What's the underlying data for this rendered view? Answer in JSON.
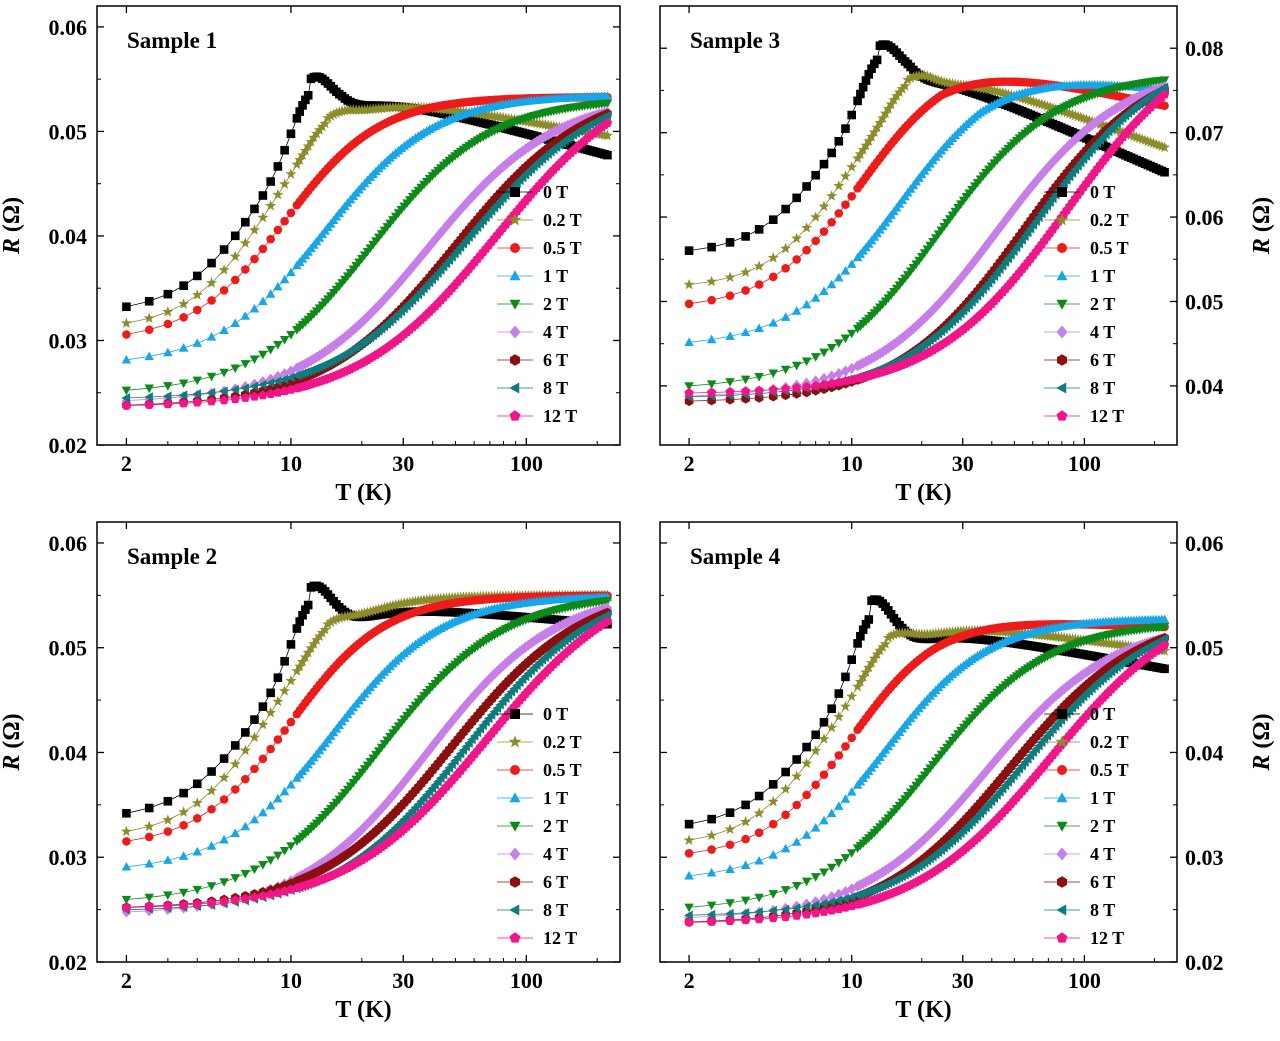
{
  "figure": {
    "x_unit_label": "T (K)",
    "y_unit_label_italic": "R",
    "y_unit_label_rest": " (Ω)",
    "legend": [
      {
        "label": "0 T",
        "color": "#000000",
        "marker": "square"
      },
      {
        "label": "0.2 T",
        "color": "#8c8c2a",
        "marker": "star"
      },
      {
        "label": "0.5 T",
        "color": "#ee1b1b",
        "marker": "circle"
      },
      {
        "label": "1 T",
        "color": "#18a6e6",
        "marker": "triangle-up"
      },
      {
        "label": "2 T",
        "color": "#0e8a1a",
        "marker": "triangle-down"
      },
      {
        "label": "4 T",
        "color": "#c77ee8",
        "marker": "diamond"
      },
      {
        "label": "6 T",
        "color": "#8b0f0f",
        "marker": "hexagon"
      },
      {
        "label": "8 T",
        "color": "#0c7c7c",
        "marker": "triangle-left"
      },
      {
        "label": "12 T",
        "color": "#f0168a",
        "marker": "pentagon"
      }
    ]
  },
  "chart_data": [
    {
      "type": "scatter",
      "title": "Sample 1",
      "xlabel": "T (K)",
      "ylabel": "R (Ω)",
      "x_scale": "log",
      "xlim": [
        1.5,
        250
      ],
      "ylim": [
        0.02,
        0.062
      ],
      "x_ticks": [
        2,
        10,
        30,
        100
      ],
      "y_ticks": [
        0.02,
        0.03,
        0.04,
        0.05,
        0.06
      ],
      "y_axis_side": "left",
      "legend_position": "right-middle",
      "series": [
        {
          "name": "0 T",
          "r_low": 0.0325,
          "r_high": 0.0545,
          "onset_T": 7.5,
          "width": 0.17,
          "peak": 0.0055,
          "peak_T": 12,
          "high_slope": -0.006
        },
        {
          "name": "0.2 T",
          "r_low": 0.031,
          "r_high": 0.054,
          "onset_T": 8.0,
          "width": 0.17,
          "peak": 0.0015,
          "peak_T": 14,
          "high_slope": -0.004
        },
        {
          "name": "0.5 T",
          "r_low": 0.0298,
          "r_high": 0.0533,
          "onset_T": 9.5,
          "width": 0.2,
          "peak": 0.0,
          "peak_T": 20,
          "high_slope": 0.0
        },
        {
          "name": "1 T",
          "r_low": 0.0275,
          "r_high": 0.0535,
          "onset_T": 14.0,
          "width": 0.23,
          "peak": 0.0,
          "peak_T": 20,
          "high_slope": 0.0
        },
        {
          "name": "2 T",
          "r_low": 0.0248,
          "r_high": 0.0532,
          "onset_T": 22.0,
          "width": 0.25,
          "peak": 0.0,
          "peak_T": 20,
          "high_slope": 0.0
        },
        {
          "name": "4 T",
          "r_low": 0.024,
          "r_high": 0.0535,
          "onset_T": 38.0,
          "width": 0.27,
          "peak": 0.0,
          "peak_T": 20,
          "high_slope": 0.0
        },
        {
          "name": "6 T",
          "r_low": 0.0236,
          "r_high": 0.0545,
          "onset_T": 50.0,
          "width": 0.28,
          "peak": 0.0,
          "peak_T": 20,
          "high_slope": 0.0
        },
        {
          "name": "8 T",
          "r_low": 0.0243,
          "r_high": 0.055,
          "onset_T": 56.0,
          "width": 0.29,
          "peak": 0.0,
          "peak_T": 20,
          "high_slope": 0.0
        },
        {
          "name": "12 T",
          "r_low": 0.0236,
          "r_high": 0.0565,
          "onset_T": 75.0,
          "width": 0.3,
          "peak": 0.0,
          "peak_T": 20,
          "high_slope": 0.0
        }
      ]
    },
    {
      "type": "scatter",
      "title": "Sample 3",
      "xlabel": "T (K)",
      "ylabel": "R (Ω)",
      "x_scale": "log",
      "xlim": [
        1.5,
        250
      ],
      "ylim": [
        0.033,
        0.085
      ],
      "x_ticks": [
        2,
        10,
        30,
        100
      ],
      "y_ticks": [
        0.04,
        0.05,
        0.06,
        0.07,
        0.08
      ],
      "y_axis_side": "right",
      "legend_position": "right-middle",
      "series": [
        {
          "name": "0 T",
          "r_low": 0.0555,
          "r_high": 0.0785,
          "onset_T": 8.0,
          "width": 0.16,
          "peak": 0.0065,
          "peak_T": 13,
          "high_slope": -0.012
        },
        {
          "name": "0.2 T",
          "r_low": 0.0515,
          "r_high": 0.0785,
          "onset_T": 9.5,
          "width": 0.17,
          "peak": 0.0025,
          "peak_T": 17,
          "high_slope": -0.01
        },
        {
          "name": "0.5 T",
          "r_low": 0.049,
          "r_high": 0.079,
          "onset_T": 11.0,
          "width": 0.2,
          "peak": 0.0,
          "peak_T": 20,
          "high_slope": -0.006
        },
        {
          "name": "1 T",
          "r_low": 0.0445,
          "r_high": 0.0785,
          "onset_T": 16.0,
          "width": 0.23,
          "peak": 0.0,
          "peak_T": 20,
          "high_slope": -0.004
        },
        {
          "name": "2 T",
          "r_low": 0.0395,
          "r_high": 0.077,
          "onset_T": 24.0,
          "width": 0.25,
          "peak": 0.0,
          "peak_T": 20,
          "high_slope": 0.0
        },
        {
          "name": "4 T",
          "r_low": 0.0385,
          "r_high": 0.078,
          "onset_T": 42.0,
          "width": 0.27,
          "peak": 0.0,
          "peak_T": 20,
          "high_slope": 0.0
        },
        {
          "name": "6 T",
          "r_low": 0.038,
          "r_high": 0.079,
          "onset_T": 55.0,
          "width": 0.27,
          "peak": 0.0,
          "peak_T": 20,
          "high_slope": 0.0
        },
        {
          "name": "8 T",
          "r_low": 0.0385,
          "r_high": 0.0805,
          "onset_T": 62.0,
          "width": 0.28,
          "peak": 0.0,
          "peak_T": 20,
          "high_slope": 0.0
        },
        {
          "name": "12 T",
          "r_low": 0.039,
          "r_high": 0.083,
          "onset_T": 85.0,
          "width": 0.29,
          "peak": 0.0,
          "peak_T": 20,
          "high_slope": 0.0
        }
      ]
    },
    {
      "type": "scatter",
      "title": "Sample 2",
      "xlabel": "T (K)",
      "ylabel": "R (Ω)",
      "x_scale": "log",
      "xlim": [
        1.5,
        250
      ],
      "ylim": [
        0.02,
        0.062
      ],
      "x_ticks": [
        2,
        10,
        30,
        100
      ],
      "y_ticks": [
        0.02,
        0.03,
        0.04,
        0.05,
        0.06
      ],
      "y_axis_side": "left",
      "legend_position": "right-middle",
      "series": [
        {
          "name": "0 T",
          "r_low": 0.0335,
          "r_high": 0.0545,
          "onset_T": 7.5,
          "width": 0.17,
          "peak": 0.006,
          "peak_T": 12,
          "high_slope": -0.002
        },
        {
          "name": "0.2 T",
          "r_low": 0.0318,
          "r_high": 0.055,
          "onset_T": 8.0,
          "width": 0.17,
          "peak": 0.0015,
          "peak_T": 14,
          "high_slope": 0.0
        },
        {
          "name": "0.5 T",
          "r_low": 0.0308,
          "r_high": 0.055,
          "onset_T": 10.0,
          "width": 0.2,
          "peak": 0.0,
          "peak_T": 20,
          "high_slope": 0.0
        },
        {
          "name": "1 T",
          "r_low": 0.0285,
          "r_high": 0.055,
          "onset_T": 15.0,
          "width": 0.23,
          "peak": 0.0,
          "peak_T": 20,
          "high_slope": 0.0
        },
        {
          "name": "2 T",
          "r_low": 0.0255,
          "r_high": 0.0552,
          "onset_T": 24.0,
          "width": 0.26,
          "peak": 0.0,
          "peak_T": 20,
          "high_slope": 0.0
        },
        {
          "name": "4 T",
          "r_low": 0.0245,
          "r_high": 0.0555,
          "onset_T": 38.0,
          "width": 0.27,
          "peak": 0.0,
          "peak_T": 20,
          "high_slope": 0.0
        },
        {
          "name": "6 T",
          "r_low": 0.025,
          "r_high": 0.056,
          "onset_T": 48.0,
          "width": 0.28,
          "peak": 0.0,
          "peak_T": 20,
          "high_slope": 0.0
        },
        {
          "name": "8 T",
          "r_low": 0.0248,
          "r_high": 0.0565,
          "onset_T": 56.0,
          "width": 0.28,
          "peak": 0.0,
          "peak_T": 20,
          "high_slope": 0.0
        },
        {
          "name": "12 T",
          "r_low": 0.025,
          "r_high": 0.0575,
          "onset_T": 68.0,
          "width": 0.3,
          "peak": 0.0,
          "peak_T": 20,
          "high_slope": 0.0
        }
      ]
    },
    {
      "type": "scatter",
      "title": "Sample 4",
      "xlabel": "T (K)",
      "ylabel": "R (Ω)",
      "x_scale": "log",
      "xlim": [
        1.5,
        250
      ],
      "ylim": [
        0.02,
        0.062
      ],
      "x_ticks": [
        2,
        10,
        30,
        100
      ],
      "y_ticks": [
        0.02,
        0.03,
        0.04,
        0.05,
        0.06
      ],
      "y_axis_side": "right",
      "legend_position": "right-middle",
      "series": [
        {
          "name": "0 T",
          "r_low": 0.0325,
          "r_high": 0.0525,
          "onset_T": 7.5,
          "width": 0.17,
          "peak": 0.0065,
          "peak_T": 12,
          "high_slope": -0.004
        },
        {
          "name": "0.2 T",
          "r_low": 0.031,
          "r_high": 0.053,
          "onset_T": 8.0,
          "width": 0.17,
          "peak": 0.002,
          "peak_T": 14,
          "high_slope": -0.003
        },
        {
          "name": "0.5 T",
          "r_low": 0.0298,
          "r_high": 0.053,
          "onset_T": 10.0,
          "width": 0.19,
          "peak": 0.0,
          "peak_T": 20,
          "high_slope": -0.001
        },
        {
          "name": "1 T",
          "r_low": 0.0277,
          "r_high": 0.0528,
          "onset_T": 14.0,
          "width": 0.22,
          "peak": 0.0,
          "peak_T": 20,
          "high_slope": 0.0
        },
        {
          "name": "2 T",
          "r_low": 0.0248,
          "r_high": 0.0525,
          "onset_T": 22.0,
          "width": 0.25,
          "peak": 0.0,
          "peak_T": 20,
          "high_slope": 0.0
        },
        {
          "name": "4 T",
          "r_low": 0.024,
          "r_high": 0.0525,
          "onset_T": 38.0,
          "width": 0.27,
          "peak": 0.0,
          "peak_T": 20,
          "high_slope": 0.0
        },
        {
          "name": "6 T",
          "r_low": 0.0236,
          "r_high": 0.0535,
          "onset_T": 48.0,
          "width": 0.28,
          "peak": 0.0,
          "peak_T": 20,
          "high_slope": 0.0
        },
        {
          "name": "8 T",
          "r_low": 0.0243,
          "r_high": 0.054,
          "onset_T": 56.0,
          "width": 0.28,
          "peak": 0.0,
          "peak_T": 20,
          "high_slope": 0.0
        },
        {
          "name": "12 T",
          "r_low": 0.0236,
          "r_high": 0.0555,
          "onset_T": 72.0,
          "width": 0.3,
          "peak": 0.0,
          "peak_T": 20,
          "high_slope": 0.0
        }
      ]
    }
  ]
}
